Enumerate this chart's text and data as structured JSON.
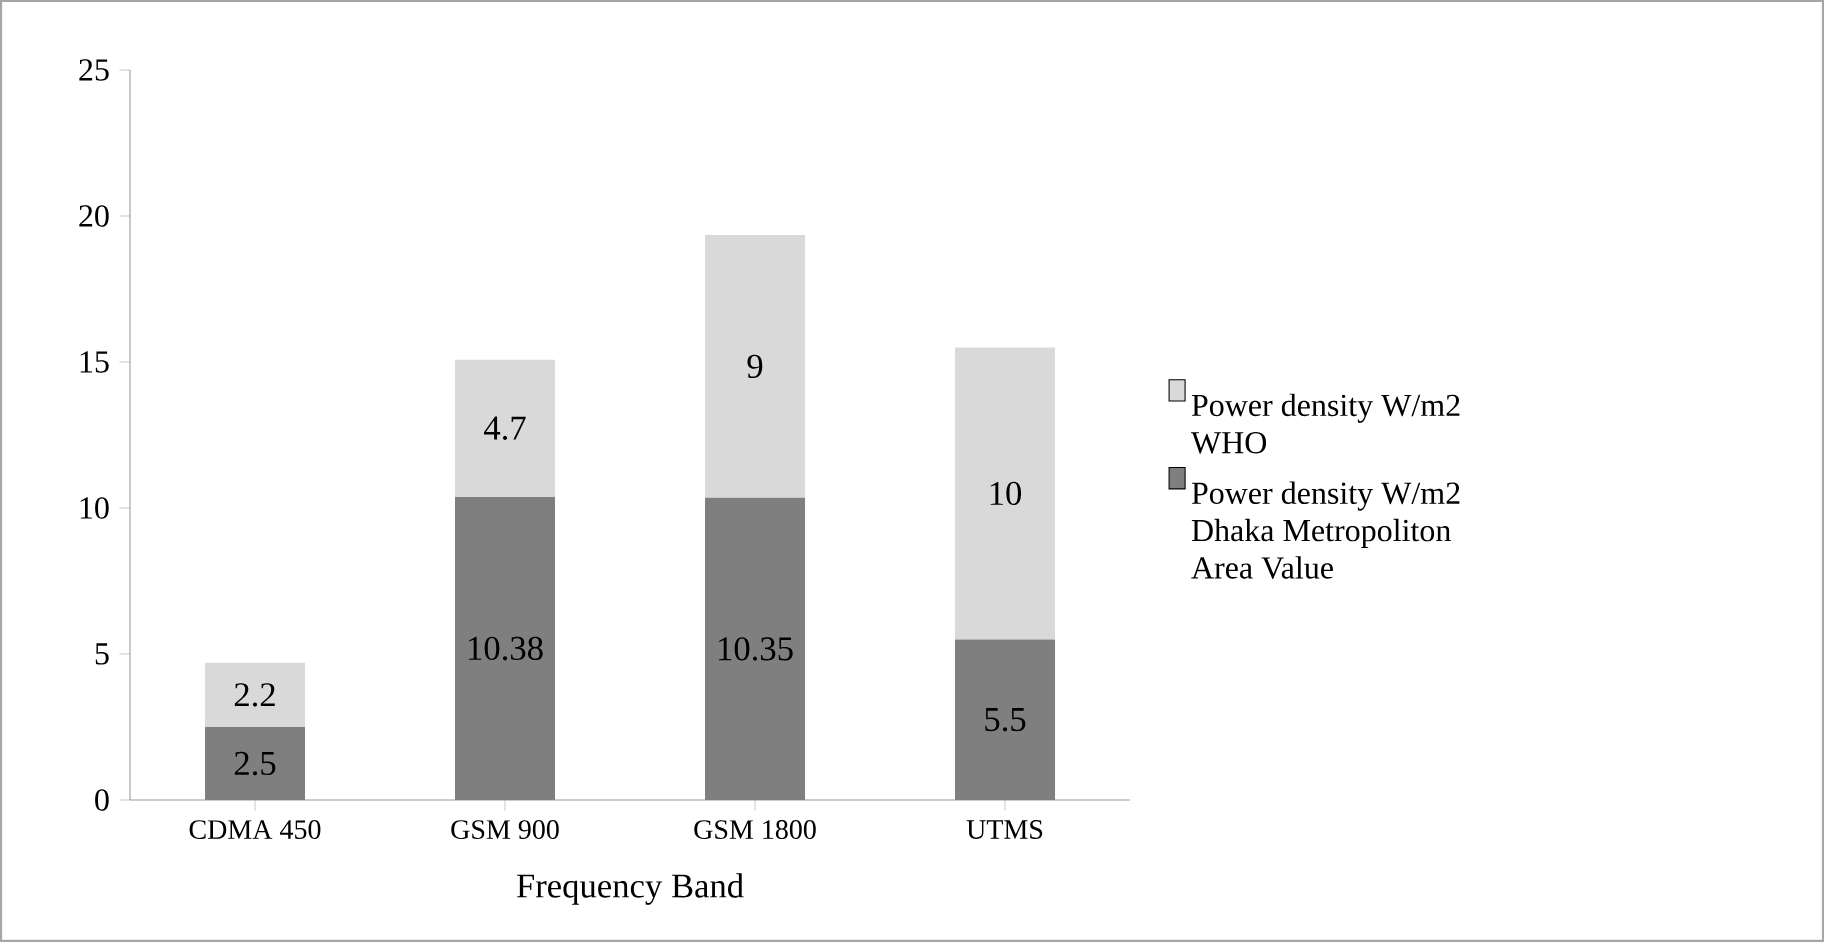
{
  "chart_data": {
    "type": "bar",
    "stacked": true,
    "xlabel": "Frequency Band",
    "categories": [
      "CDMA 450",
      "GSM 900",
      "GSM 1800",
      "UTMS"
    ],
    "series": [
      {
        "name": "Power density W/m2 Dhaka Metropoliton Area Value",
        "color": "#7f7f7f",
        "values": [
          2.5,
          10.38,
          10.35,
          5.5
        ]
      },
      {
        "name": "Power density W/m2 WHO",
        "color": "#d9d9d9",
        "values": [
          2.2,
          4.7,
          9,
          10
        ]
      }
    ],
    "ylim": [
      0,
      25
    ],
    "yticks": [
      0,
      5,
      10,
      15,
      20,
      25
    ],
    "data_labels": true,
    "legend": "right",
    "grid": false
  }
}
